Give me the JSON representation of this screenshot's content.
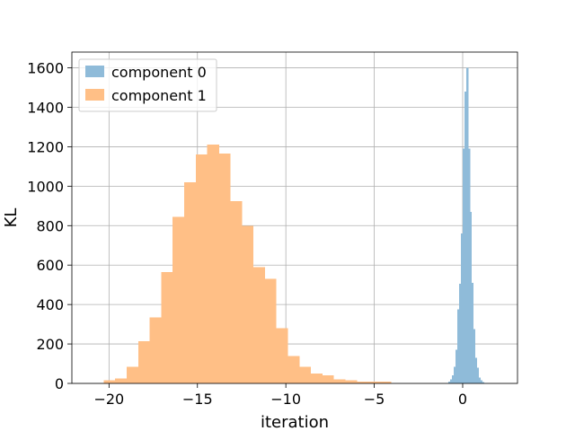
{
  "chart_data": {
    "type": "histogram",
    "title": "",
    "xlabel": "iteration",
    "ylabel": "KL",
    "xlim": [
      -22.1,
      3.1
    ],
    "ylim": [
      0,
      1680
    ],
    "grid": true,
    "legend_position": "top-left",
    "xticks": [
      -20,
      -15,
      -10,
      -5,
      0
    ],
    "yticks": [
      0,
      200,
      400,
      600,
      800,
      1000,
      1200,
      1400,
      1600
    ],
    "series": [
      {
        "name": "component 0",
        "color": "#8fbbd9",
        "bin_edges": [
          -0.9,
          -0.8,
          -0.7,
          -0.6,
          -0.5,
          -0.4,
          -0.3,
          -0.2,
          -0.1,
          0.0,
          0.1,
          0.2,
          0.3,
          0.4,
          0.5,
          0.6,
          0.7,
          0.8,
          0.9,
          1.0,
          1.1,
          1.2,
          1.3,
          1.4,
          1.5
        ],
        "counts": [
          3,
          8,
          20,
          40,
          85,
          170,
          375,
          505,
          760,
          1190,
          1480,
          1600,
          1190,
          870,
          510,
          275,
          130,
          80,
          30,
          15,
          6,
          3,
          2,
          1
        ]
      },
      {
        "name": "component 1",
        "color": "#ffbf86",
        "bin_edges": [
          -20.3,
          -19.65,
          -19.0,
          -18.35,
          -17.7,
          -17.05,
          -16.4,
          -15.75,
          -15.1,
          -14.45,
          -13.8,
          -13.15,
          -12.5,
          -11.85,
          -11.2,
          -10.55,
          -9.9,
          -9.25,
          -8.6,
          -7.95,
          -7.3,
          -6.65,
          -6.0,
          -5.35,
          -4.7,
          -4.05
        ],
        "counts": [
          15,
          25,
          85,
          215,
          335,
          565,
          845,
          1020,
          1160,
          1210,
          1165,
          925,
          800,
          590,
          530,
          280,
          140,
          85,
          50,
          40,
          20,
          15,
          10,
          10,
          10
        ]
      }
    ]
  }
}
